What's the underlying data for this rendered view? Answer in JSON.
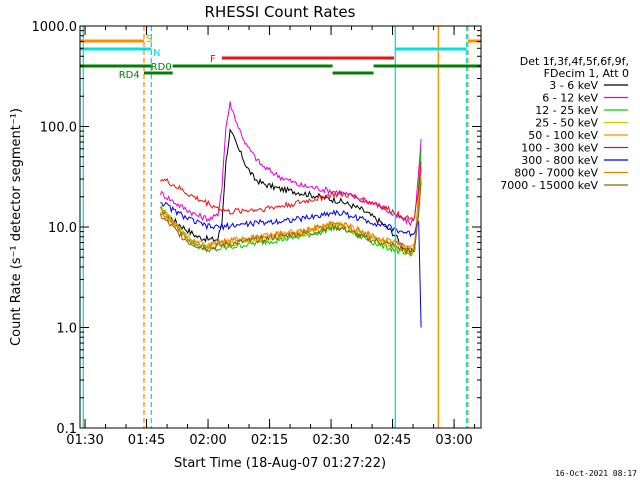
{
  "chart_data": {
    "type": "line",
    "title": "RHESSI Count Rates",
    "xlabel": "Start Time (18-Aug-07 01:27:22)",
    "ylabel": "Count Rate (s⁻¹ detector segment⁻¹)",
    "y_scale": "log",
    "ylim": [
      0.1,
      1000
    ],
    "xlim_minutes": [
      1.4,
      99.2
    ],
    "x_ticks": [
      {
        "label": "01:30",
        "minutes": 2.63
      },
      {
        "label": "01:45",
        "minutes": 17.63
      },
      {
        "label": "02:00",
        "minutes": 32.63
      },
      {
        "label": "02:15",
        "minutes": 47.63
      },
      {
        "label": "02:30",
        "minutes": 62.63
      },
      {
        "label": "02:45",
        "minutes": 77.63
      },
      {
        "label": "03:00",
        "minutes": 92.63
      }
    ],
    "y_ticks": [
      {
        "label": "0.1",
        "value": 0.1
      },
      {
        "label": "1.0",
        "value": 1
      },
      {
        "label": "10.0",
        "value": 10
      },
      {
        "label": "100.0",
        "value": 100
      },
      {
        "label": "1000.0",
        "value": 1000
      }
    ],
    "legend": {
      "placement": "right",
      "header": [
        "Det 1f,3f,4f,5f,6f,9f,",
        "FDecim 1, Att 0"
      ]
    },
    "series": [
      {
        "name": "3 - 6 keV",
        "color": "#000000",
        "points": [
          [
            21,
            15
          ],
          [
            25,
            11
          ],
          [
            30,
            8
          ],
          [
            33,
            7.5
          ],
          [
            35,
            7.5
          ],
          [
            36,
            11
          ],
          [
            37,
            45
          ],
          [
            38,
            90
          ],
          [
            39,
            75
          ],
          [
            40,
            60
          ],
          [
            41,
            50
          ],
          [
            42,
            40
          ],
          [
            44,
            30
          ],
          [
            46,
            27
          ],
          [
            50,
            24
          ],
          [
            55,
            22
          ],
          [
            60,
            20
          ],
          [
            65,
            18
          ],
          [
            70,
            15
          ],
          [
            75,
            11
          ],
          [
            78,
            8.5
          ],
          [
            80,
            6.5
          ],
          [
            82,
            5.5
          ],
          [
            83,
            6
          ],
          [
            84,
            20
          ],
          [
            84.6,
            40
          ]
        ]
      },
      {
        "name": "6 - 12 keV",
        "color": "#e000e0",
        "points": [
          [
            21,
            22
          ],
          [
            25,
            17
          ],
          [
            30,
            13
          ],
          [
            33,
            12
          ],
          [
            35,
            13
          ],
          [
            36,
            25
          ],
          [
            37,
            100
          ],
          [
            38,
            170
          ],
          [
            39,
            130
          ],
          [
            40,
            100
          ],
          [
            41,
            80
          ],
          [
            42,
            65
          ],
          [
            44,
            50
          ],
          [
            46,
            40
          ],
          [
            50,
            32
          ],
          [
            55,
            26
          ],
          [
            60,
            24
          ],
          [
            65,
            22
          ],
          [
            70,
            19
          ],
          [
            75,
            16
          ],
          [
            78,
            13
          ],
          [
            80,
            12
          ],
          [
            82,
            11
          ],
          [
            83,
            12
          ],
          [
            84,
            35
          ],
          [
            84.6,
            75
          ]
        ]
      },
      {
        "name": "12 - 25 keV",
        "color": "#00cc00",
        "points": [
          [
            21,
            16
          ],
          [
            25,
            10
          ],
          [
            28,
            7.5
          ],
          [
            30,
            6.5
          ],
          [
            33,
            6
          ],
          [
            35,
            6
          ],
          [
            40,
            6.5
          ],
          [
            45,
            7
          ],
          [
            50,
            7.5
          ],
          [
            55,
            8
          ],
          [
            60,
            9
          ],
          [
            63,
            10
          ],
          [
            66,
            9.5
          ],
          [
            70,
            8
          ],
          [
            75,
            6.5
          ],
          [
            78,
            6
          ],
          [
            80,
            5.5
          ],
          [
            82,
            5
          ],
          [
            83,
            6
          ],
          [
            84,
            25
          ],
          [
            84.6,
            60
          ]
        ]
      },
      {
        "name": "25 - 50 keV",
        "color": "#c8c800",
        "points": [
          [
            21,
            16
          ],
          [
            25,
            10.5
          ],
          [
            28,
            8
          ],
          [
            30,
            7
          ],
          [
            33,
            6.5
          ],
          [
            35,
            6.5
          ],
          [
            40,
            7
          ],
          [
            45,
            7.5
          ],
          [
            50,
            8
          ],
          [
            55,
            8.5
          ],
          [
            60,
            9.5
          ],
          [
            63,
            10.5
          ],
          [
            66,
            10
          ],
          [
            70,
            8.5
          ],
          [
            75,
            7
          ],
          [
            78,
            6.5
          ],
          [
            80,
            6
          ],
          [
            82,
            5.5
          ],
          [
            83,
            6
          ],
          [
            84,
            20
          ],
          [
            84.6,
            40
          ]
        ]
      },
      {
        "name": "50 - 100 keV",
        "color": "#ff8c00",
        "points": [
          [
            21,
            15
          ],
          [
            25,
            10
          ],
          [
            28,
            7.5
          ],
          [
            30,
            7
          ],
          [
            33,
            6.5
          ],
          [
            35,
            7
          ],
          [
            40,
            7.5
          ],
          [
            45,
            8
          ],
          [
            50,
            8.5
          ],
          [
            55,
            9
          ],
          [
            60,
            10
          ],
          [
            63,
            11
          ],
          [
            66,
            10.5
          ],
          [
            70,
            9
          ],
          [
            75,
            7.5
          ],
          [
            78,
            7
          ],
          [
            80,
            6.5
          ],
          [
            82,
            6
          ],
          [
            83,
            6.5
          ],
          [
            84,
            18
          ],
          [
            84.6,
            35
          ]
        ]
      },
      {
        "name": "100 - 300 keV",
        "color": "#ee1111",
        "points": [
          [
            21,
            30
          ],
          [
            23,
            28
          ],
          [
            25,
            25
          ],
          [
            28,
            21
          ],
          [
            30,
            19
          ],
          [
            33,
            17
          ],
          [
            35,
            15.5
          ],
          [
            38,
            14
          ],
          [
            40,
            14.5
          ],
          [
            45,
            15
          ],
          [
            50,
            16
          ],
          [
            55,
            17.5
          ],
          [
            60,
            19.5
          ],
          [
            63,
            21
          ],
          [
            66,
            21
          ],
          [
            70,
            19
          ],
          [
            75,
            16
          ],
          [
            78,
            14
          ],
          [
            80,
            13
          ],
          [
            82,
            12
          ],
          [
            83,
            12.5
          ],
          [
            84,
            25
          ],
          [
            84.6,
            45
          ]
        ]
      },
      {
        "name": "300 - 800 keV",
        "color": "#0000ee",
        "points": [
          [
            21,
            18
          ],
          [
            25,
            14
          ],
          [
            28,
            12
          ],
          [
            30,
            11
          ],
          [
            33,
            10
          ],
          [
            35,
            10
          ],
          [
            40,
            10.5
          ],
          [
            45,
            11
          ],
          [
            50,
            11.5
          ],
          [
            55,
            12
          ],
          [
            60,
            13
          ],
          [
            63,
            14
          ],
          [
            66,
            13.5
          ],
          [
            70,
            12
          ],
          [
            75,
            10.5
          ],
          [
            78,
            9.5
          ],
          [
            80,
            9
          ],
          [
            82,
            8.5
          ],
          [
            83,
            9
          ],
          [
            84,
            12
          ],
          [
            84.6,
            1.0
          ]
        ]
      },
      {
        "name": "800 - 7000 keV",
        "color": "#d98000",
        "points": [
          [
            21,
            14
          ],
          [
            25,
            10
          ],
          [
            28,
            7.5
          ],
          [
            30,
            7
          ],
          [
            33,
            6.5
          ],
          [
            35,
            7
          ],
          [
            40,
            7.5
          ],
          [
            45,
            8
          ],
          [
            50,
            8.5
          ],
          [
            55,
            9
          ],
          [
            60,
            10
          ],
          [
            63,
            11
          ],
          [
            66,
            10.5
          ],
          [
            70,
            9
          ],
          [
            75,
            7.5
          ],
          [
            78,
            7
          ],
          [
            80,
            6.5
          ],
          [
            82,
            6
          ],
          [
            83,
            6.5
          ],
          [
            84,
            15
          ],
          [
            84.6,
            30
          ]
        ]
      },
      {
        "name": "7000 - 15000 keV",
        "color": "#8b6508",
        "points": [
          [
            21,
            13
          ],
          [
            25,
            9
          ],
          [
            28,
            7
          ],
          [
            30,
            6.5
          ],
          [
            33,
            6
          ],
          [
            35,
            6.5
          ],
          [
            40,
            7
          ],
          [
            45,
            7.5
          ],
          [
            50,
            8
          ],
          [
            55,
            8.5
          ],
          [
            60,
            9
          ],
          [
            63,
            10
          ],
          [
            66,
            9.5
          ],
          [
            70,
            8
          ],
          [
            75,
            7
          ],
          [
            78,
            6.5
          ],
          [
            80,
            6
          ],
          [
            82,
            5.5
          ],
          [
            83,
            6
          ],
          [
            84,
            14
          ],
          [
            84.6,
            28
          ]
        ]
      }
    ],
    "vertical_markers": [
      {
        "minutes": 2.2,
        "color": "#00e0e0",
        "style": "solid"
      },
      {
        "minutes": 17.0,
        "color": "#ff8c00",
        "style": "dashed"
      },
      {
        "minutes": 18.8,
        "color": "#00e0e0",
        "style": "dashed"
      },
      {
        "minutes": 78.3,
        "color": "#00e0e0",
        "style": "solid"
      },
      {
        "minutes": 88.8,
        "color": "#ff8c00",
        "style": "solid"
      },
      {
        "minutes": 95.7,
        "color": "#00e0e0",
        "style": "dashed"
      },
      {
        "minutes": 96.0,
        "color": "#ff8c00",
        "style": "dashed"
      }
    ],
    "interval_bars": [
      {
        "label": "S",
        "color": "#ff8c00",
        "segments": [
          [
            1.4,
            17.0
          ],
          [
            96.0,
            99.2
          ]
        ]
      },
      {
        "label": "N",
        "color": "#00e0e0",
        "segments": [
          [
            1.4,
            18.8
          ],
          [
            78.3,
            95.7
          ]
        ]
      },
      {
        "label": "F",
        "color": "#ee1111",
        "segments": [
          [
            36.0,
            78.0
          ]
        ]
      },
      {
        "label": "RD0",
        "color": "#008000",
        "segments": [
          [
            1.4,
            18.8
          ],
          [
            24.0,
            63.0
          ],
          [
            73.0,
            99.2
          ]
        ]
      },
      {
        "label": "RD4",
        "color": "#008000",
        "segments": [
          [
            17.0,
            24.0
          ],
          [
            63.0,
            73.0
          ]
        ]
      }
    ]
  },
  "footer": {
    "timestamp": "16-Oct-2021 08:17"
  }
}
